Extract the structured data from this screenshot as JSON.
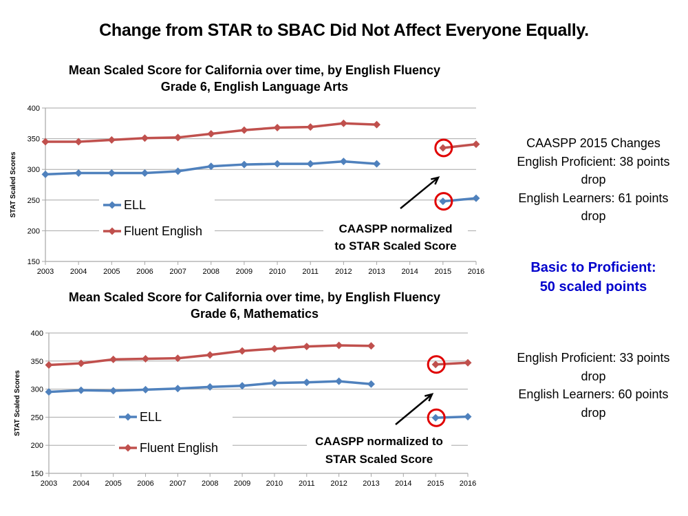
{
  "slide_title": "Change from STAR to SBAC Did Not Affect Everyone Equally.",
  "colors": {
    "ell": "#4f81bd",
    "fluent": "#c0504d",
    "highlight": "#e00000",
    "accent_text": "#0000cc",
    "grid": "#a6a6a6"
  },
  "side_notes": {
    "ela": [
      "CAASPP 2015 Changes",
      "English Proficient: 38 points",
      "drop",
      "English Learners: 61 points",
      "drop"
    ],
    "basic_to_proficient": [
      "Basic to Proficient:",
      "50 scaled points"
    ],
    "math": [
      "English Proficient: 33 points",
      "drop",
      "English Learners: 60 points",
      "drop"
    ]
  },
  "chart_data": [
    {
      "type": "line",
      "title": [
        "Mean Scaled Score for California over time, by English Fluency",
        "Grade 6, English Language Arts"
      ],
      "xlabel": "",
      "ylabel": "STAT Scaled Scores",
      "categories": [
        "2003",
        "2004",
        "2005",
        "2006",
        "2007",
        "2008",
        "2009",
        "2010",
        "2011",
        "2012",
        "2013",
        "2014",
        "2015",
        "2016"
      ],
      "ylim": [
        150,
        400
      ],
      "yticks": [
        150,
        200,
        250,
        300,
        350,
        400
      ],
      "grid": true,
      "legend": "center-left",
      "series": [
        {
          "name": "ELL",
          "color": "#4f81bd",
          "values": [
            292,
            294,
            294,
            294,
            297,
            305,
            308,
            309,
            309,
            313,
            309,
            null,
            248,
            253
          ]
        },
        {
          "name": "Fluent English",
          "color": "#c0504d",
          "values": [
            345,
            345,
            348,
            351,
            352,
            358,
            364,
            368,
            369,
            375,
            373,
            null,
            335,
            341
          ]
        }
      ],
      "highlighted_points": [
        {
          "x": "2015",
          "series": "Fluent English"
        },
        {
          "x": "2015",
          "series": "ELL"
        }
      ],
      "annotation": [
        "CAASPP normalized",
        "to STAR Scaled Score"
      ]
    },
    {
      "type": "line",
      "title": [
        "Mean Scaled Score for California over time, by English Fluency",
        "Grade 6, Mathematics"
      ],
      "xlabel": "",
      "ylabel": "STAT Scaled Scores",
      "categories": [
        "2003",
        "2004",
        "2005",
        "2006",
        "2007",
        "2008",
        "2009",
        "2010",
        "2011",
        "2012",
        "2013",
        "2014",
        "2015",
        "2016"
      ],
      "ylim": [
        150,
        400
      ],
      "yticks": [
        150,
        200,
        250,
        300,
        350,
        400
      ],
      "grid": true,
      "legend": "center-left",
      "series": [
        {
          "name": "ELL",
          "color": "#4f81bd",
          "values": [
            295,
            298,
            297,
            299,
            301,
            304,
            306,
            311,
            312,
            314,
            309,
            null,
            249,
            251
          ]
        },
        {
          "name": "Fluent English",
          "color": "#c0504d",
          "values": [
            343,
            346,
            353,
            354,
            355,
            361,
            368,
            372,
            376,
            378,
            377,
            null,
            344,
            347
          ]
        }
      ],
      "highlighted_points": [
        {
          "x": "2015",
          "series": "Fluent English"
        },
        {
          "x": "2015",
          "series": "ELL"
        }
      ],
      "annotation": [
        "CAASPP normalized to",
        "STAR Scaled Score"
      ]
    }
  ]
}
